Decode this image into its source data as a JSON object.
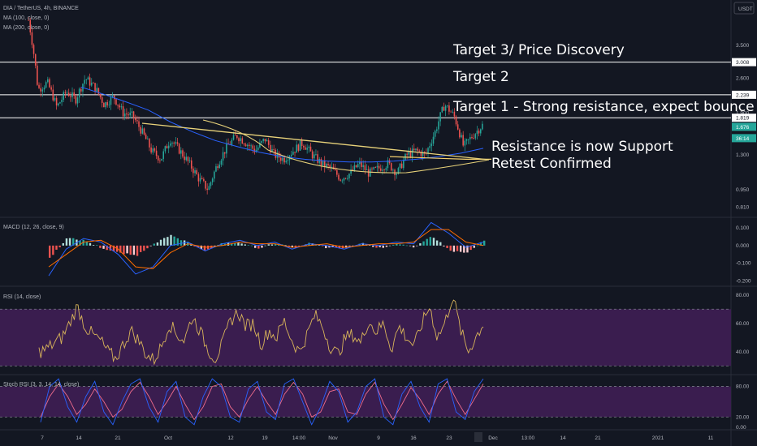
{
  "header": {
    "symbol": "DIA / TetherUS, 4h, BINANCE",
    "ma1": "MA (100, close, 0)",
    "ma2": "MA (200, close, 0)",
    "currency": "USDT"
  },
  "colors": {
    "background": "#131722",
    "up": "#26a69a",
    "down": "#ef5350",
    "ma100": "#2962ff",
    "ma200": "#f5d16f",
    "trendline": "#e8d27a",
    "rsi_line": "#d8b45a",
    "rsi_band": "#3a1d4f",
    "stoch_k": "#2962ff",
    "stoch_d": "#ef6c8c",
    "macd_line": "#2962ff",
    "signal_line": "#ff6d00"
  },
  "chart_data": [
    {
      "type": "candlestick",
      "pane": "price",
      "scale": "log",
      "ylim": [
        0.75,
        5.2
      ],
      "x_ticks": [
        "7",
        "14",
        "21",
        "Oct",
        "12",
        "19",
        "14:00",
        "Nov",
        "9",
        "16",
        "23",
        "Dec",
        "13:00",
        "14",
        "21",
        "2021",
        "11"
      ],
      "y_ticks": [
        "3.500",
        "2.600",
        "1.900",
        "1.300",
        "0.950",
        "0.810"
      ],
      "close_path": [
        4.4,
        2.35,
        2.5,
        2.0,
        2.3,
        2.15,
        2.6,
        2.4,
        2.05,
        2.2,
        1.9,
        1.85,
        1.6,
        1.35,
        1.25,
        1.5,
        1.35,
        1.2,
        1.05,
        0.95,
        1.2,
        1.4,
        1.55,
        1.45,
        1.35,
        1.5,
        1.3,
        1.25,
        1.35,
        1.45,
        1.3,
        1.2,
        1.15,
        1.05,
        1.1,
        1.2,
        1.1,
        1.15,
        1.2,
        1.1,
        1.3,
        1.35,
        1.3,
        1.6,
        2.05,
        1.85,
        1.4,
        1.55,
        1.7
      ],
      "ma100_path": [
        2.4,
        2.25,
        2.1,
        1.95,
        1.75,
        1.6,
        1.48,
        1.4,
        1.33,
        1.28,
        1.25,
        1.23,
        1.22,
        1.22,
        1.23,
        1.25,
        1.28,
        1.32,
        1.38
      ],
      "ma200_path": [
        1.28,
        1.27,
        1.26,
        1.25,
        1.25
      ],
      "price_tags": [
        {
          "label": "3.008",
          "value": 3.008,
          "style": "light"
        },
        {
          "label": "2.239",
          "value": 2.239,
          "style": "light"
        },
        {
          "label": "1.819",
          "value": 1.819,
          "style": "light"
        },
        {
          "label": "1.676",
          "value": 1.676,
          "style": "green"
        },
        {
          "label": "36:14",
          "value": 1.6,
          "style": "green"
        }
      ],
      "horizontal_levels": [
        3.008,
        2.239,
        1.819
      ],
      "annotations": [
        "Target 3/ Price Discovery",
        "Target 2",
        "Target 1 - Strong resistance, expect bounce",
        "Resistance is now Support",
        "Retest Confirmed"
      ]
    },
    {
      "type": "histogram+line",
      "pane": "macd",
      "title": "MACD (12, 26, close, 9)",
      "y_ticks": [
        "0.100",
        "0.000",
        "-0.100",
        "-0.200"
      ],
      "ylim": [
        -0.22,
        0.15
      ],
      "macd_path": [
        -0.17,
        -0.02,
        0.04,
        0.02,
        -0.05,
        -0.16,
        -0.12,
        0.0,
        0.02,
        -0.03,
        0.01,
        0.03,
        0.0,
        0.02,
        -0.02,
        0.01,
        0.0,
        -0.02,
        0.01,
        0.0,
        0.02,
        0.01,
        0.13,
        0.07,
        -0.01,
        0.02
      ],
      "signal_path": [
        -0.12,
        -0.05,
        0.02,
        0.03,
        -0.02,
        -0.12,
        -0.13,
        -0.04,
        0.01,
        -0.01,
        0.0,
        0.02,
        0.01,
        0.01,
        -0.01,
        0.0,
        0.01,
        -0.01,
        0.0,
        0.01,
        0.01,
        0.02,
        0.09,
        0.09,
        0.02,
        0.0
      ]
    },
    {
      "type": "line",
      "pane": "rsi",
      "title": "RSI (14, close)",
      "y_ticks": [
        "80.00",
        "60.00",
        "40.00"
      ],
      "ylim": [
        25,
        85
      ],
      "band": [
        30,
        70
      ],
      "values": [
        40,
        42,
        46,
        50,
        60,
        72,
        58,
        52,
        48,
        40,
        35,
        45,
        55,
        48,
        38,
        34,
        44,
        60,
        52,
        48,
        65,
        55,
        42,
        35,
        46,
        62,
        68,
        58,
        60,
        45,
        55,
        50,
        62,
        48,
        40,
        52,
        66,
        58,
        44,
        38,
        50,
        52,
        46,
        62,
        54,
        60,
        42,
        58,
        50,
        44,
        60,
        72,
        50,
        60,
        80,
        56,
        40,
        50,
        60
      ]
    },
    {
      "type": "line",
      "pane": "stoch_rsi",
      "title": "Stoch RSI (3, 3, 14, 14, close)",
      "y_ticks": [
        "80.00",
        "20.00",
        "0.00"
      ],
      "ylim": [
        -5,
        100
      ],
      "band": [
        20,
        80
      ],
      "k_values": [
        10,
        80,
        95,
        40,
        10,
        60,
        90,
        30,
        5,
        50,
        85,
        95,
        40,
        10,
        70,
        90,
        20,
        5,
        60,
        95,
        80,
        20,
        10,
        75,
        90,
        30,
        15,
        85,
        95,
        50,
        5,
        40,
        90,
        70,
        10,
        30,
        80,
        95,
        20,
        5,
        65,
        90,
        40,
        10,
        85,
        95,
        30,
        15,
        70,
        95
      ],
      "d_values": [
        20,
        60,
        85,
        60,
        25,
        45,
        75,
        50,
        20,
        35,
        70,
        88,
        60,
        25,
        50,
        80,
        45,
        15,
        40,
        80,
        85,
        40,
        20,
        55,
        80,
        50,
        25,
        65,
        88,
        65,
        20,
        30,
        70,
        75,
        30,
        25,
        65,
        88,
        45,
        15,
        45,
        78,
        55,
        25,
        65,
        90,
        55,
        25,
        55,
        85
      ]
    }
  ],
  "panes": {
    "macd_title": "MACD (12, 26, close, 9)",
    "rsi_title": "RSI (14, close)",
    "stoch_title": "Stoch RSI (3, 3, 14, 14, close)"
  }
}
